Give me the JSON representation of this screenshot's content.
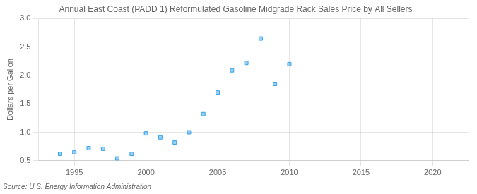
{
  "chart_data": {
    "type": "scatter",
    "title": "Annual East Coast (PADD 1) Reformulated Gasoline Midgrade Rack Sales Price by All Sellers",
    "ylabel": "Dollars per Gallon",
    "source": "Source: U.S. Energy Information Administration",
    "x": [
      1994,
      1995,
      1996,
      1997,
      1998,
      1999,
      2000,
      2001,
      2002,
      2003,
      2004,
      2005,
      2006,
      2007,
      2008,
      2009,
      2010
    ],
    "values": [
      0.62,
      0.65,
      0.72,
      0.71,
      0.54,
      0.62,
      0.98,
      0.91,
      0.82,
      1.0,
      1.32,
      1.7,
      2.09,
      2.22,
      2.65,
      1.85,
      2.2
    ],
    "xlim": [
      1992.5,
      2022.5
    ],
    "ylim": [
      0.5,
      3.0
    ],
    "xticks": [
      1995,
      2000,
      2005,
      2010,
      2015,
      2020
    ],
    "yticks": [
      0.5,
      {
        "value": 1,
        "label": "1.0"
      },
      1.5,
      {
        "value": 2,
        "label": "2.0"
      },
      2.5,
      {
        "value": 3,
        "label": "3.0"
      }
    ],
    "grid": true,
    "marker": "square"
  }
}
